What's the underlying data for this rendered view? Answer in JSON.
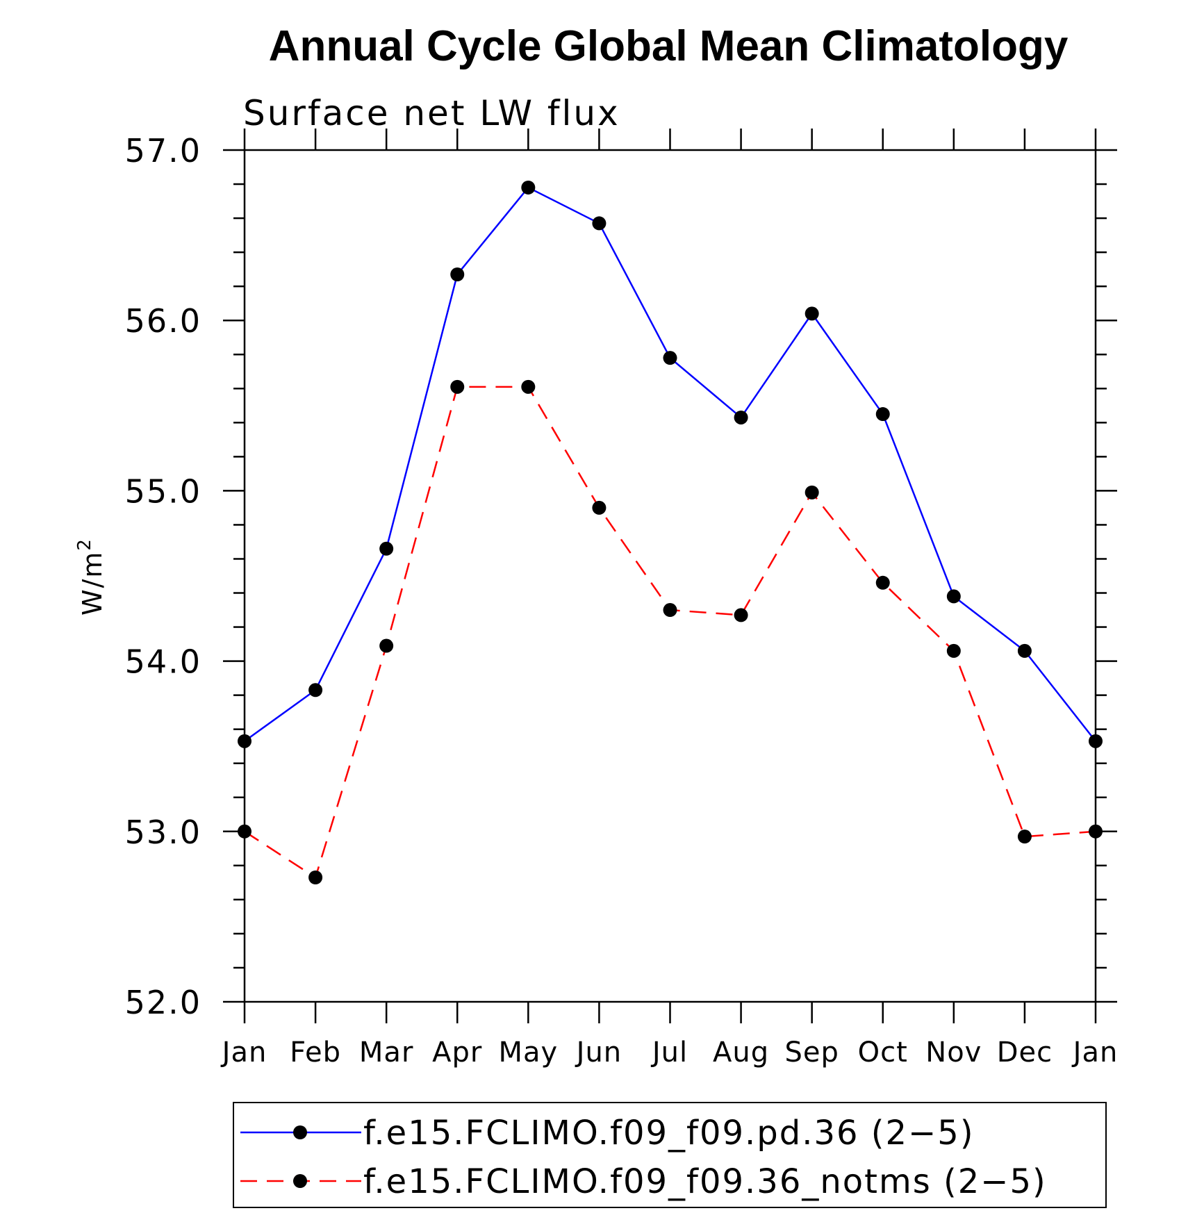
{
  "chart_data": {
    "type": "line",
    "title": "Annual Cycle Global Mean Climatology",
    "subtitle": "Surface net LW flux",
    "ylabel": "W/m",
    "ylabel_superscript": "2",
    "ylim": [
      52.0,
      57.0
    ],
    "ytick_labels": [
      "52.0",
      "53.0",
      "54.0",
      "55.0",
      "56.0",
      "57.0"
    ],
    "categories": [
      "Jan",
      "Feb",
      "Mar",
      "Apr",
      "May",
      "Jun",
      "Jul",
      "Aug",
      "Sep",
      "Oct",
      "Nov",
      "Dec",
      "Jan"
    ],
    "series": [
      {
        "name": "f.e15.FCLIMO.f09_f09.pd.36 (2-5)",
        "legend_label": "f.e15.FCLIMO.f09_f09.pd.36 (2−5)",
        "color": "#0000ff",
        "dash": "solid",
        "values": [
          53.53,
          53.83,
          54.66,
          56.27,
          56.78,
          56.57,
          55.78,
          55.43,
          56.04,
          55.45,
          54.38,
          54.06,
          53.53
        ]
      },
      {
        "name": "f.e15.FCLIMO.f09_f09.36_notms (2-5)",
        "legend_label": "f.e15.FCLIMO.f09_f09.36_notms (2−5)",
        "color": "#ff0000",
        "dash": "dashed",
        "values": [
          53.0,
          52.73,
          54.09,
          55.61,
          55.61,
          54.9,
          54.3,
          54.27,
          54.99,
          54.46,
          54.06,
          52.97,
          53.0
        ]
      }
    ],
    "marker_color": "#000000",
    "legend_position": "bottom"
  }
}
